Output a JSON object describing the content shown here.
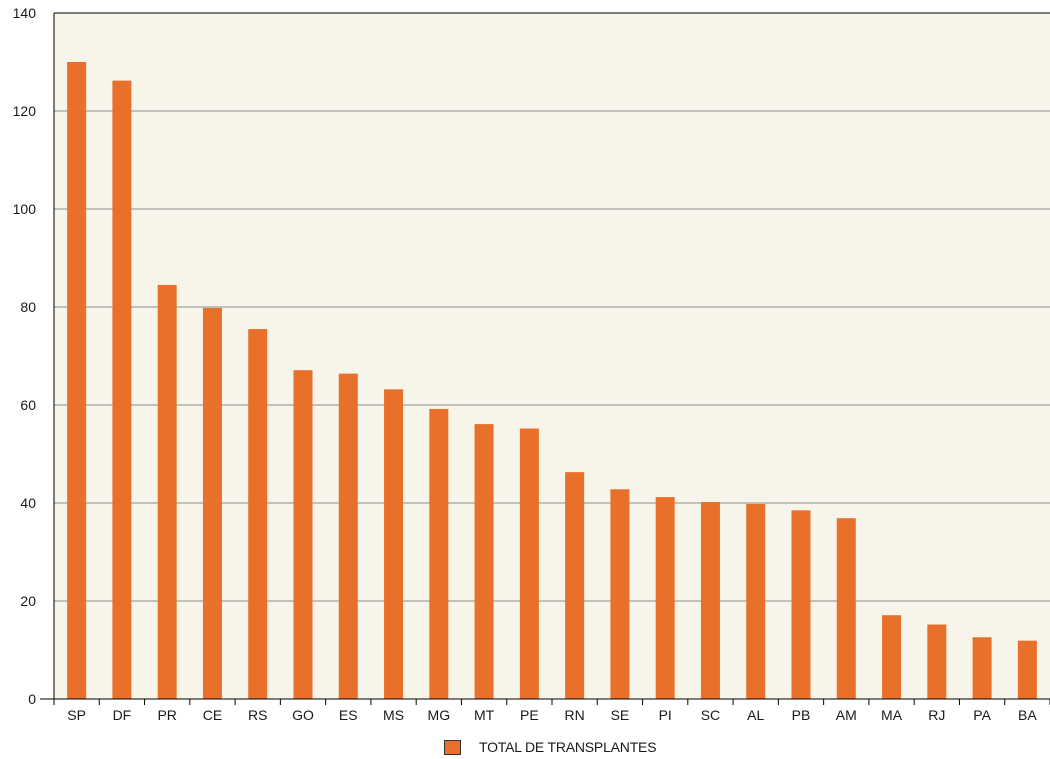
{
  "chart_data": {
    "type": "bar",
    "categories": [
      "SP",
      "DF",
      "PR",
      "CE",
      "RS",
      "GO",
      "ES",
      "MS",
      "MG",
      "MT",
      "PE",
      "RN",
      "SE",
      "PI",
      "SC",
      "AL",
      "PB",
      "AM",
      "MA",
      "RJ",
      "PA",
      "BA"
    ],
    "series": [
      {
        "name": "TOTAL DE TRANSPLANTES",
        "values": [
          130,
          126.2,
          84.5,
          79.8,
          75.5,
          67.1,
          66.4,
          63.2,
          59.2,
          56.1,
          55.2,
          46.3,
          42.8,
          41.2,
          40.2,
          39.8,
          38.5,
          36.9,
          17.1,
          15.2,
          12.6,
          11.9
        ]
      }
    ],
    "yticks": [
      0,
      20,
      40,
      60,
      80,
      100,
      120,
      140
    ],
    "ylim": [
      0,
      140
    ],
    "grid": true,
    "legend": "bottom-center",
    "colors": {
      "bar": "#e8702a",
      "plot_background": "#f7f4ea",
      "grid": "#8c8c8c",
      "axis": "#000000"
    }
  }
}
